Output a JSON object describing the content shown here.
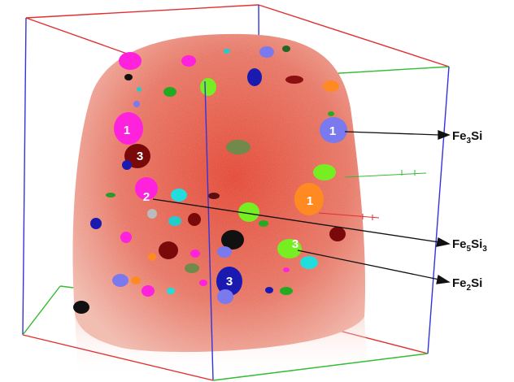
{
  "figure": {
    "phase_labels": [
      {
        "base": "Fe",
        "sub1": "3",
        "mid": "Si",
        "sub2": ""
      },
      {
        "base": "Fe",
        "sub1": "5",
        "mid": "Si",
        "sub2": "3"
      },
      {
        "base": "Fe",
        "sub1": "2",
        "mid": "Si",
        "sub2": ""
      }
    ],
    "particle_numbers": [
      "1",
      "1",
      "3",
      "2",
      "1",
      "3",
      "3"
    ],
    "colors": {
      "box_red": "#e03030",
      "box_green": "#33bb33",
      "box_blue": "#3333dd",
      "tip_body": "#e0533f",
      "fe3si": "#7a7aee",
      "fe5si3": "#ff22dd",
      "fe2si": "#77ee22"
    }
  }
}
